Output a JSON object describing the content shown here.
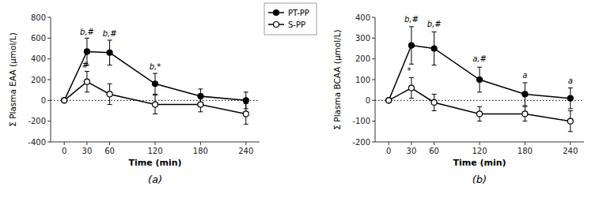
{
  "chart_data": [
    {
      "type": "line",
      "title": "(a)",
      "x_label": "Time (min)",
      "y_label": "Σ Plasma EAA (μmol/L)",
      "x": [
        0,
        30,
        60,
        120,
        180,
        240
      ],
      "xlim": [
        -18,
        258
      ],
      "xticks": [
        0,
        30,
        60,
        120,
        180,
        240
      ],
      "ylim": [
        -400,
        800
      ],
      "yticks": [
        -400,
        -200,
        0,
        200,
        400,
        600,
        800
      ],
      "series": [
        {
          "color": "black",
          "marker": "circle",
          "values": [
            0,
            470,
            460,
            160,
            40,
            0
          ],
          "errors": [
            0,
            130,
            120,
            100,
            70,
            80
          ]
        },
        {
          "color": "black",
          "marker": "open-circle",
          "values": [
            0,
            180,
            60,
            -40,
            -40,
            -130
          ],
          "errors": [
            0,
            100,
            100,
            90,
            70,
            100
          ]
        }
      ],
      "annotations": [
        {
          "x": 30,
          "y": 620,
          "text": "b,#"
        },
        {
          "x": 60,
          "y": 600,
          "text": "b,#"
        },
        {
          "x": 120,
          "y": 285,
          "text": "b,*"
        },
        {
          "x": 28,
          "y": 295,
          "text": "#"
        }
      ]
    },
    {
      "type": "line",
      "title": "(b)",
      "x_label": "Time (min)",
      "y_label": "Σ Plasma BCAA (μmol/L)",
      "x": [
        0,
        30,
        60,
        120,
        180,
        240
      ],
      "xlim": [
        -18,
        258
      ],
      "xticks": [
        0,
        30,
        60,
        120,
        180,
        240
      ],
      "ylim": [
        -200,
        400
      ],
      "yticks": [
        -200,
        -100,
        0,
        100,
        200,
        300,
        400
      ],
      "legend": "upper left",
      "series": [
        {
          "name": "PT-PP",
          "color": "black",
          "marker": "circle",
          "values": [
            0,
            265,
            250,
            100,
            30,
            10
          ],
          "errors": [
            0,
            90,
            80,
            60,
            55,
            50
          ]
        },
        {
          "name": "S-PP",
          "color": "black",
          "marker": "open-circle",
          "values": [
            0,
            60,
            -10,
            -65,
            -65,
            -100
          ],
          "errors": [
            0,
            50,
            40,
            35,
            35,
            50
          ]
        }
      ],
      "annotations": [
        {
          "x": 30,
          "y": 368,
          "text": "b,#"
        },
        {
          "x": 60,
          "y": 348,
          "text": "b,#"
        },
        {
          "x": 120,
          "y": 178,
          "text": "a,#"
        },
        {
          "x": 180,
          "y": 100,
          "text": "a"
        },
        {
          "x": 240,
          "y": 75,
          "text": "a"
        },
        {
          "x": 27,
          "y": 122,
          "text": "*"
        }
      ]
    }
  ]
}
